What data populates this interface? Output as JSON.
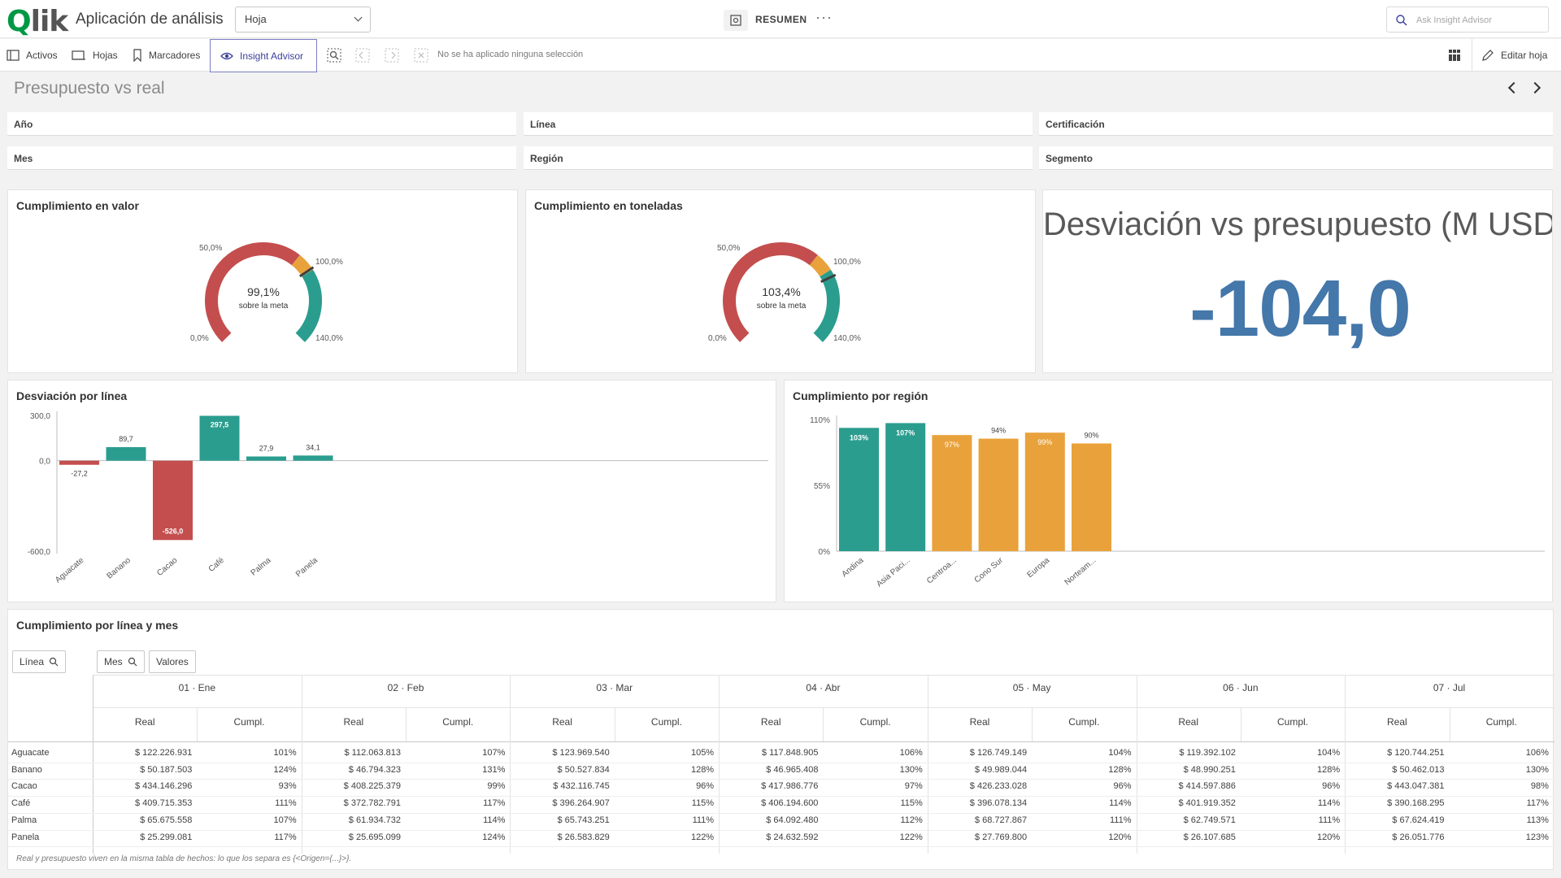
{
  "app": {
    "title": "Aplicación de análisis",
    "sheet_select": "Hoja",
    "summary_label": "RESUMEN",
    "more": "···",
    "ask_placeholder": "Ask Insight Advisor"
  },
  "toolbar": {
    "activos": "Activos",
    "hojas": "Hojas",
    "marcadores": "Marcadores",
    "insight": "Insight Advisor",
    "no_selection": "No se ha aplicado ninguna selección",
    "editar": "Editar hoja"
  },
  "sheet": {
    "title": "Presupuesto vs real"
  },
  "filters": [
    "Año",
    "Línea",
    "Certificación",
    "Mes",
    "Región",
    "Segmento"
  ],
  "gauges": [
    {
      "title": "Cumplimiento en valor",
      "value_text": "99,1%",
      "sub": "sobre la meta",
      "value": 99.1,
      "min": 0,
      "max": 140,
      "lbl_min": "0,0%",
      "lbl_50": "50,0%",
      "lbl_100": "100,0%",
      "lbl_max": "140,0%"
    },
    {
      "title": "Cumplimiento en toneladas",
      "value_text": "103,4%",
      "sub": "sobre la meta",
      "value": 103.4,
      "min": 0,
      "max": 140,
      "lbl_min": "0,0%",
      "lbl_50": "50,0%",
      "lbl_100": "100,0%",
      "lbl_max": "140,0%"
    }
  ],
  "kpi": {
    "title": "Desviación vs presupuesto (M USD)",
    "value": "-104,0",
    "color": "#4477aa"
  },
  "colors": {
    "red": "#c44e4e",
    "teal": "#2a9d8f",
    "orange": "#e9a23b",
    "accent": "#3b4199"
  },
  "chart_data": [
    {
      "type": "bar",
      "title": "Desviación por línea",
      "categories": [
        "Aguacate",
        "Banano",
        "Cacao",
        "Café",
        "Palma",
        "Panela"
      ],
      "values": [
        -27.2,
        89.7,
        -526.0,
        297.5,
        27.9,
        34.1
      ],
      "value_labels": [
        "-27,2",
        "89,7",
        "-526,0",
        "297,5",
        "27,9",
        "34,1"
      ],
      "ylim": [
        -600,
        300
      ],
      "yticks": [
        "300,0",
        "0,0",
        "-600,0"
      ]
    },
    {
      "type": "bar",
      "title": "Cumplimiento por región",
      "categories": [
        "Andina",
        "Asia Paci...",
        "Centroa...",
        "Cono Sur",
        "Europa",
        "Norteam..."
      ],
      "values": [
        103,
        107,
        97,
        94,
        99,
        90
      ],
      "value_labels": [
        "103%",
        "107%",
        "97%",
        "94%",
        "99%",
        "90%"
      ],
      "ylim": [
        0,
        110
      ],
      "yticks": [
        "110%",
        "55%",
        "0%"
      ]
    }
  ],
  "table": {
    "title": "Cumplimiento por línea y mes",
    "dim_linea": "Línea",
    "dim_mes": "Mes",
    "valores": "Valores",
    "months": [
      "01 · Ene",
      "02 · Feb",
      "03 · Mar",
      "04 · Abr",
      "05 · May",
      "06 · Jun",
      "07 · Jul"
    ],
    "sub_real": "Real",
    "sub_cumpl": "Cumpl.",
    "rows": [
      {
        "label": "Aguacate",
        "cells": [
          "$ 122.226.931",
          "101%",
          "$ 112.063.813",
          "107%",
          "$ 123.969.540",
          "105%",
          "$ 117.848.905",
          "106%",
          "$ 126.749.149",
          "104%",
          "$ 119.392.102",
          "104%",
          "$ 120.744.251",
          "106%"
        ]
      },
      {
        "label": "Banano",
        "cells": [
          "$ 50.187.503",
          "124%",
          "$ 46.794.323",
          "131%",
          "$ 50.527.834",
          "128%",
          "$ 46.965.408",
          "130%",
          "$ 49.989.044",
          "128%",
          "$ 48.990.251",
          "128%",
          "$ 50.462.013",
          "130%"
        ]
      },
      {
        "label": "Cacao",
        "cells": [
          "$ 434.146.296",
          "93%",
          "$ 408.225.379",
          "99%",
          "$ 432.116.745",
          "96%",
          "$ 417.986.776",
          "97%",
          "$ 426.233.028",
          "96%",
          "$ 414.597.886",
          "96%",
          "$ 443.047.381",
          "98%"
        ]
      },
      {
        "label": "Café",
        "cells": [
          "$ 409.715.353",
          "111%",
          "$ 372.782.791",
          "117%",
          "$ 396.264.907",
          "115%",
          "$ 406.194.600",
          "115%",
          "$ 396.078.134",
          "114%",
          "$ 401.919.352",
          "114%",
          "$ 390.168.295",
          "117%"
        ]
      },
      {
        "label": "Palma",
        "cells": [
          "$ 65.675.558",
          "107%",
          "$ 61.934.732",
          "114%",
          "$ 65.743.251",
          "111%",
          "$ 64.092.480",
          "112%",
          "$ 68.727.867",
          "111%",
          "$ 62.749.571",
          "111%",
          "$ 67.624.419",
          "113%"
        ]
      },
      {
        "label": "Panela",
        "cells": [
          "$ 25.299.081",
          "117%",
          "$ 25.695.099",
          "124%",
          "$ 26.583.829",
          "122%",
          "$ 24.632.592",
          "122%",
          "$ 27.769.800",
          "120%",
          "$ 26.107.685",
          "120%",
          "$ 26.051.776",
          "123%"
        ]
      }
    ],
    "footnote": "Real y presupuesto viven en la misma tabla de hechos: lo que los separa es {<Origen={...}>}."
  }
}
